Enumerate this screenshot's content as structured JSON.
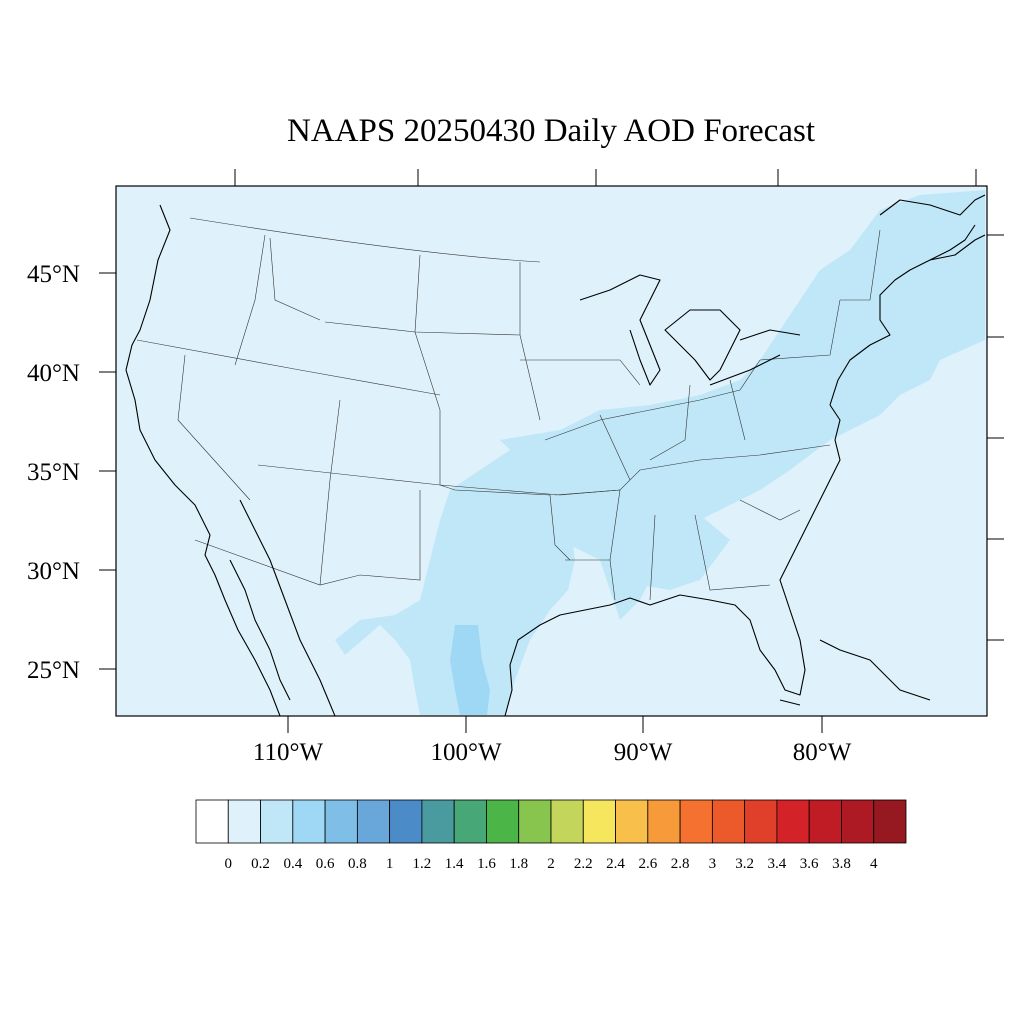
{
  "title": "NAAPS 20250430 Daily AOD Forecast",
  "map": {
    "background_color": "#dff2fb",
    "lon_labels": [
      "110°W",
      "100°W",
      "90°W",
      "80°W"
    ],
    "lat_labels": [
      "45°N",
      "40°N",
      "35°N",
      "30°N",
      "25°N"
    ]
  },
  "colorbar": {
    "colors": [
      "#ffffff",
      "#dff2fb",
      "#bfe7f8",
      "#9fd8f4",
      "#7fbee6",
      "#69a6da",
      "#4a8bc8",
      "#4a9ba0",
      "#47a776",
      "#4bb548",
      "#87c54f",
      "#c3d55a",
      "#f6e65d",
      "#f8c04a",
      "#f79a3a",
      "#f4712f",
      "#ec5a2c",
      "#e0402a",
      "#d42229",
      "#c01c26",
      "#ad1a23",
      "#961820"
    ],
    "labels": [
      "0",
      "0.2",
      "0.4",
      "0.6",
      "0.8",
      "1",
      "1.2",
      "1.4",
      "1.6",
      "1.8",
      "2",
      "2.2",
      "2.4",
      "2.6",
      "2.8",
      "3",
      "3.2",
      "3.4",
      "3.6",
      "3.8",
      "4"
    ]
  }
}
